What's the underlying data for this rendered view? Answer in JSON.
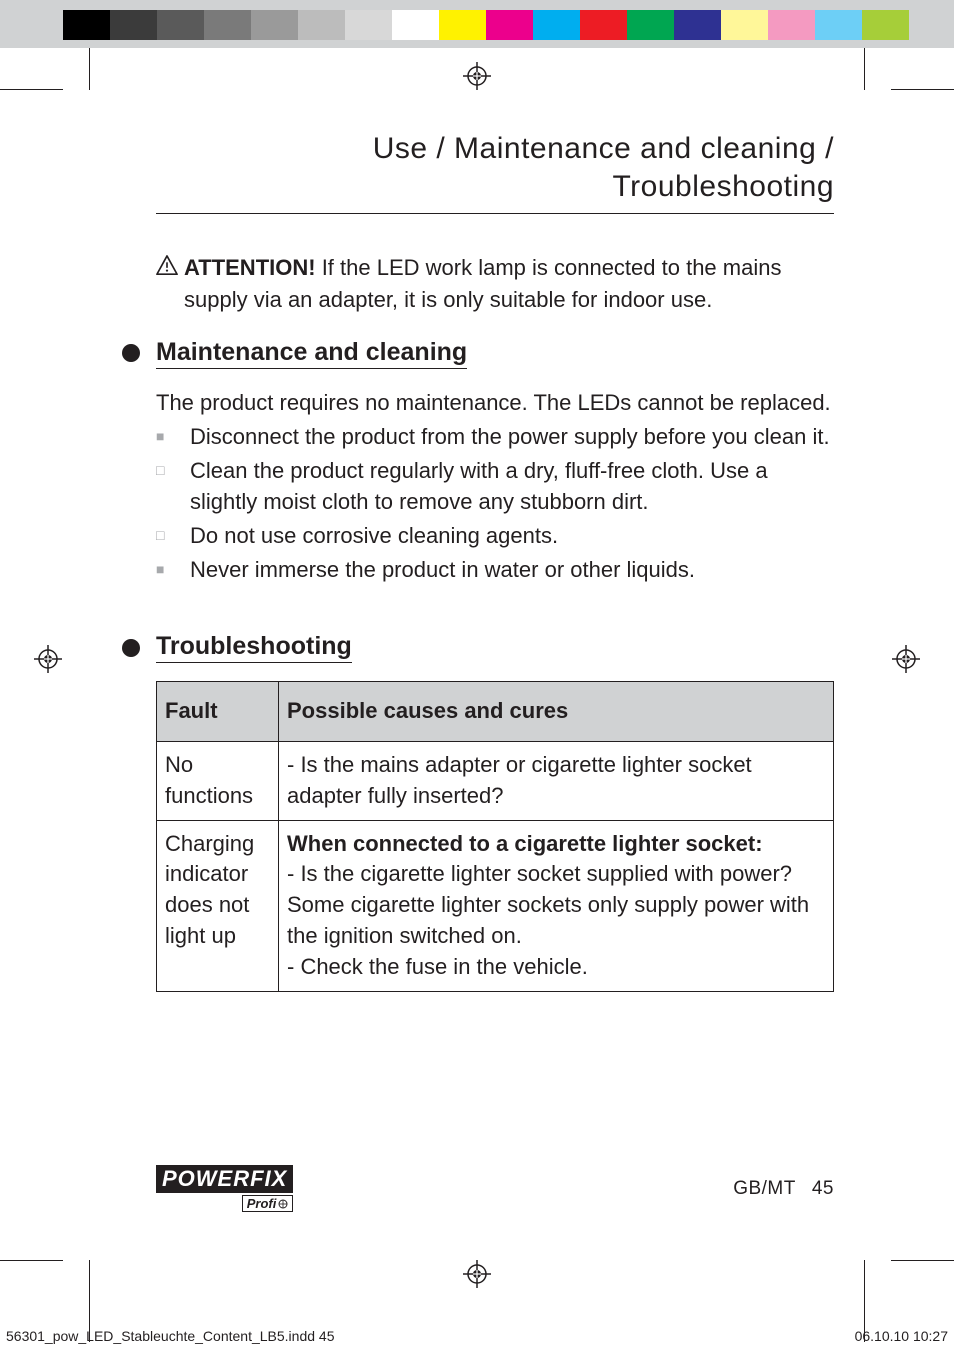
{
  "colorbars": {
    "left": [
      "#000000",
      "#3b3b3b",
      "#5a5a5a",
      "#7a7a7a",
      "#9a9a9a",
      "#bcbcbc",
      "#d8d8d8",
      "#ffffff"
    ],
    "right": [
      "#fff200",
      "#ec008c",
      "#00aeef",
      "#ed1c24",
      "#00a651",
      "#2e3192",
      "#fff799",
      "#f49ac1",
      "#6dcff6",
      "#a6ce39"
    ]
  },
  "page": {
    "title": "Use / Maintenance and cleaning / Troubleshooting",
    "attention_bold": "ATTENTION!",
    "attention_rest": " If the LED work lamp is connected to the mains supply via an adapter, it is only suitable for indoor use."
  },
  "maintenance": {
    "heading": "Maintenance and cleaning",
    "intro": "The product requires no maintenance. The LEDs cannot be replaced.",
    "items": [
      {
        "marker": "square-filled",
        "text": "Disconnect the product from the power supply before you clean it."
      },
      {
        "marker": "square-open",
        "text": "Clean the product regularly with a dry, fluff-free cloth. Use a slightly moist cloth to remove any stubborn dirt."
      },
      {
        "marker": "square-open",
        "text": "Do not use corrosive cleaning agents."
      },
      {
        "marker": "square-filled",
        "text": "Never immerse the product in water or other liquids."
      }
    ]
  },
  "troubleshooting": {
    "heading": "Troubleshooting",
    "columns": [
      "Fault",
      "Possible causes and cures"
    ],
    "rows": [
      {
        "fault": "No functions",
        "cure_plain": "- Is the mains adapter or cigarette lighter socket adapter fully inserted?"
      },
      {
        "fault": "Charging indicator does not light up",
        "cure_bold": "When connected to a cigarette lighter socket:",
        "cure_lines": [
          "- Is the cigarette lighter socket supplied with power? Some cigarette lighter sockets only supply power with the ignition switched on.",
          "- Check the fuse in the vehicle."
        ]
      }
    ]
  },
  "footer": {
    "brand_top": "POWERFIX",
    "brand_bot": "Profi",
    "page_label": "GB/MT",
    "page_number": "45"
  },
  "imposition": {
    "file": "56301_pow_LED_Stableuchte_Content_LB5.indd   45",
    "datetime": "06.10.10   10:27"
  },
  "style": {
    "body_fontsize_pt": 16,
    "heading_fontsize_pt": 19,
    "title_fontsize_pt": 22,
    "text_color": "#231f20",
    "th_bg": "#d0d2d3",
    "bullet_gray": "#a7a9ac"
  }
}
